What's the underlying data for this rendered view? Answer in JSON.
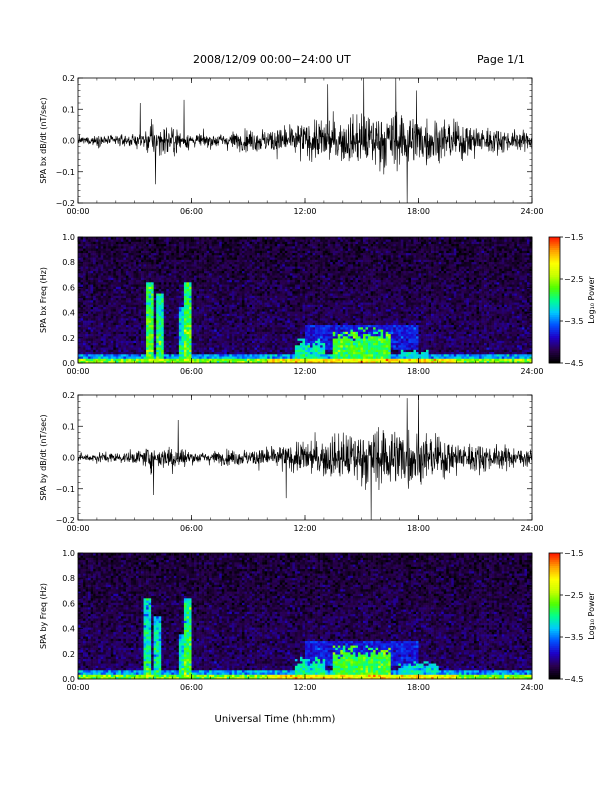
{
  "header": {
    "title": "2008/12/09   00:00−24:00 UT",
    "page": "Page 1/1"
  },
  "xaxis": {
    "label": "Universal Time (hh:mm)",
    "ticks": [
      "00:00",
      "06:00",
      "12:00",
      "18:00",
      "24:00"
    ]
  },
  "colors": {
    "trace": "#000000",
    "colormap": [
      "#000000",
      "#2a0050",
      "#1e00c8",
      "#0050ff",
      "#00c8ff",
      "#00ff90",
      "#50ff00",
      "#c8ff00",
      "#ffff00",
      "#ffa000",
      "#ff2000"
    ]
  },
  "chart_data": [
    {
      "type": "line",
      "ylabel": "SPA bx dB/dt (nT/sec)",
      "xlim": [
        0,
        24
      ],
      "ylim": [
        -0.2,
        0.2
      ],
      "yticks": [
        "−0.2",
        "−0.1",
        "0.0",
        "0.1",
        "0.2"
      ],
      "ytick_values": [
        -0.2,
        -0.1,
        0.0,
        0.1,
        0.2
      ],
      "envelope": {
        "hours": [
          0,
          1,
          2,
          3,
          3.5,
          4,
          4.5,
          5,
          5.5,
          6,
          7,
          8,
          9,
          10,
          11,
          12,
          13,
          14,
          15,
          16,
          17,
          17.5,
          18,
          19,
          20,
          21,
          22,
          23,
          24
        ],
        "amplitude": [
          0.02,
          0.025,
          0.025,
          0.03,
          0.05,
          0.09,
          0.06,
          0.08,
          0.05,
          0.03,
          0.035,
          0.04,
          0.05,
          0.06,
          0.07,
          0.09,
          0.1,
          0.11,
          0.12,
          0.14,
          0.14,
          0.13,
          0.12,
          0.1,
          0.09,
          0.08,
          0.06,
          0.05,
          0.04
        ]
      },
      "spikes": [
        {
          "hour": 3.3,
          "value": 0.12
        },
        {
          "hour": 4.1,
          "value": -0.14
        },
        {
          "hour": 5.6,
          "value": 0.13
        },
        {
          "hour": 13.2,
          "value": 0.18
        },
        {
          "hour": 15.1,
          "value": 0.21
        },
        {
          "hour": 16.8,
          "value": 0.2
        },
        {
          "hour": 17.4,
          "value": -0.21
        },
        {
          "hour": 17.9,
          "value": 0.16
        }
      ]
    },
    {
      "type": "heatmap",
      "ylabel": "SPA bx Freq (Hz)",
      "colorbar_label": "Log₁₀ Power",
      "xlim": [
        0,
        24
      ],
      "ylim": [
        0,
        1.0
      ],
      "yticks": [
        "0.0",
        "0.2",
        "0.4",
        "0.6",
        "0.8",
        "1.0"
      ],
      "ytick_values": [
        0.0,
        0.2,
        0.4,
        0.6,
        0.8,
        1.0
      ],
      "colorbar_range": [
        -4.5,
        -1.5
      ],
      "colorbar_ticks": [
        "−1.5",
        "−2.5",
        "−3.5",
        "−4.5"
      ],
      "colorbar_tick_values": [
        -1.5,
        -2.5,
        -3.5,
        -4.5
      ],
      "features": [
        {
          "hour": 3.8,
          "fmax": 0.65,
          "level": -2.6
        },
        {
          "hour": 4.3,
          "fmax": 0.55,
          "level": -2.8
        },
        {
          "hour": 5.8,
          "fmax": 0.65,
          "level": -2.6
        },
        {
          "hour": 5.6,
          "fmax": 0.45,
          "level": -3.0
        }
      ],
      "bursts": [
        {
          "h0": 11.5,
          "h1": 13.0,
          "fmax": 0.2,
          "level": -3.1
        },
        {
          "h0": 13.5,
          "h1": 16.5,
          "fmax": 0.3,
          "level": -2.8
        },
        {
          "h0": 17.0,
          "h1": 18.5,
          "fmax": 0.12,
          "level": -3.2
        }
      ]
    },
    {
      "type": "line",
      "ylabel": "SPA by dB/dt (nT/sec)",
      "xlim": [
        0,
        24
      ],
      "ylim": [
        -0.2,
        0.2
      ],
      "yticks": [
        "−0.2",
        "−0.1",
        "0.0",
        "0.1",
        "0.2"
      ],
      "ytick_values": [
        -0.2,
        -0.1,
        0.0,
        0.1,
        0.2
      ],
      "envelope": {
        "hours": [
          0,
          1,
          2,
          3,
          3.5,
          4,
          4.5,
          5,
          5.5,
          6,
          7,
          8,
          9,
          10,
          11,
          12,
          13,
          14,
          15,
          16,
          17,
          17.5,
          18,
          19,
          20,
          21,
          22,
          23,
          24
        ],
        "amplitude": [
          0.02,
          0.025,
          0.025,
          0.03,
          0.04,
          0.07,
          0.05,
          0.07,
          0.05,
          0.03,
          0.03,
          0.035,
          0.04,
          0.05,
          0.06,
          0.08,
          0.1,
          0.11,
          0.13,
          0.15,
          0.15,
          0.14,
          0.12,
          0.1,
          0.08,
          0.07,
          0.06,
          0.05,
          0.04
        ]
      },
      "spikes": [
        {
          "hour": 4.0,
          "value": -0.12
        },
        {
          "hour": 5.3,
          "value": 0.12
        },
        {
          "hour": 11.0,
          "value": -0.13
        },
        {
          "hour": 15.5,
          "value": -0.2
        },
        {
          "hour": 17.4,
          "value": 0.19
        },
        {
          "hour": 18.0,
          "value": 0.21
        }
      ]
    },
    {
      "type": "heatmap",
      "ylabel": "SPA by Freq (Hz)",
      "colorbar_label": "Log₁₀ Power",
      "xlim": [
        0,
        24
      ],
      "ylim": [
        0,
        1.0
      ],
      "yticks": [
        "0.0",
        "0.2",
        "0.4",
        "0.6",
        "0.8",
        "1.0"
      ],
      "ytick_values": [
        0.0,
        0.2,
        0.4,
        0.6,
        0.8,
        1.0
      ],
      "colorbar_range": [
        -4.5,
        -1.5
      ],
      "colorbar_ticks": [
        "−1.5",
        "−2.5",
        "−3.5",
        "−4.5"
      ],
      "colorbar_tick_values": [
        -1.5,
        -2.5,
        -3.5,
        -4.5
      ],
      "features": [
        {
          "hour": 3.7,
          "fmax": 0.65,
          "level": -2.9
        },
        {
          "hour": 4.2,
          "fmax": 0.5,
          "level": -3.0
        },
        {
          "hour": 5.8,
          "fmax": 0.65,
          "level": -2.7
        },
        {
          "hour": 5.5,
          "fmax": 0.35,
          "level": -3.1
        }
      ],
      "bursts": [
        {
          "h0": 11.5,
          "h1": 13.0,
          "fmax": 0.18,
          "level": -3.1
        },
        {
          "h0": 13.5,
          "h1": 16.5,
          "fmax": 0.28,
          "level": -2.8
        },
        {
          "h0": 17.0,
          "h1": 19.0,
          "fmax": 0.15,
          "level": -3.2
        }
      ]
    }
  ]
}
